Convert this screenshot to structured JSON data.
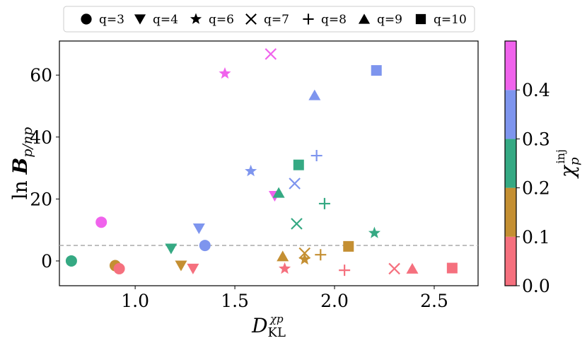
{
  "chart_data": {
    "type": "scatter",
    "xlabel": "D_KL^χp",
    "ylabel": "ln B_p/np",
    "xlim": [
      0.62,
      2.72
    ],
    "ylim": [
      -8,
      71
    ],
    "xticks": [
      1.0,
      1.5,
      2.0,
      2.5
    ],
    "xtick_labels": [
      "1.0",
      "1.5",
      "2.0",
      "2.5"
    ],
    "yticks": [
      0,
      20,
      40,
      60
    ],
    "ytick_labels": [
      "0",
      "20",
      "40",
      "60"
    ],
    "reference_line": {
      "y": 5,
      "style": "dashed",
      "color": "#b0b0b0"
    },
    "legend": {
      "placement": "top-center",
      "entries": [
        {
          "q": 3,
          "label": "q=3",
          "marker": "circle"
        },
        {
          "q": 4,
          "label": "q=4",
          "marker": "triangle-down"
        },
        {
          "q": 6,
          "label": "q=6",
          "marker": "star"
        },
        {
          "q": 7,
          "label": "q=7",
          "marker": "x"
        },
        {
          "q": 8,
          "label": "q=8",
          "marker": "plus"
        },
        {
          "q": 9,
          "label": "q=9",
          "marker": "triangle-up"
        },
        {
          "q": 10,
          "label": "q=10",
          "marker": "square"
        }
      ]
    },
    "colorbar": {
      "label": "χp^inj",
      "range": [
        0.0,
        0.5
      ],
      "ticks": [
        0.0,
        0.1,
        0.2,
        0.3,
        0.4
      ],
      "tick_labels": [
        "0.0",
        "0.1",
        "0.2",
        "0.3",
        "0.4"
      ],
      "bins": [
        {
          "from": 0.0,
          "to": 0.1,
          "color": "#f5707e"
        },
        {
          "from": 0.1,
          "to": 0.2,
          "color": "#c48f32"
        },
        {
          "from": 0.2,
          "to": 0.3,
          "color": "#35a983"
        },
        {
          "from": 0.3,
          "to": 0.4,
          "color": "#7e95ee"
        },
        {
          "from": 0.4,
          "to": 0.5,
          "color": "#f063ec"
        }
      ]
    },
    "points": [
      {
        "q": 3,
        "chi": 0.25,
        "x": 0.68,
        "y": 0.0
      },
      {
        "q": 3,
        "chi": 0.45,
        "x": 0.83,
        "y": 12.5
      },
      {
        "q": 3,
        "chi": 0.15,
        "x": 0.9,
        "y": -1.5
      },
      {
        "q": 3,
        "chi": 0.05,
        "x": 0.92,
        "y": -2.5
      },
      {
        "q": 3,
        "chi": 0.35,
        "x": 1.35,
        "y": 5.0
      },
      {
        "q": 4,
        "chi": 0.25,
        "x": 1.18,
        "y": 4.0
      },
      {
        "q": 4,
        "chi": 0.15,
        "x": 1.23,
        "y": -1.5
      },
      {
        "q": 4,
        "chi": 0.05,
        "x": 1.29,
        "y": -2.5
      },
      {
        "q": 4,
        "chi": 0.35,
        "x": 1.32,
        "y": 10.5
      },
      {
        "q": 4,
        "chi": 0.45,
        "x": 1.7,
        "y": 21.0
      },
      {
        "q": 6,
        "chi": 0.45,
        "x": 1.45,
        "y": 60.5
      },
      {
        "q": 6,
        "chi": 0.35,
        "x": 1.58,
        "y": 29.0
      },
      {
        "q": 6,
        "chi": 0.05,
        "x": 1.75,
        "y": -2.5
      },
      {
        "q": 6,
        "chi": 0.15,
        "x": 1.85,
        "y": 0.5
      },
      {
        "q": 6,
        "chi": 0.25,
        "x": 2.2,
        "y": 9.0
      },
      {
        "q": 7,
        "chi": 0.45,
        "x": 1.68,
        "y": 66.8
      },
      {
        "q": 7,
        "chi": 0.35,
        "x": 1.8,
        "y": 25.0
      },
      {
        "q": 7,
        "chi": 0.25,
        "x": 1.81,
        "y": 12.0
      },
      {
        "q": 7,
        "chi": 0.15,
        "x": 1.85,
        "y": 2.5
      },
      {
        "q": 7,
        "chi": 0.05,
        "x": 2.3,
        "y": -2.5
      },
      {
        "q": 8,
        "chi": 0.35,
        "x": 1.91,
        "y": 34.0
      },
      {
        "q": 8,
        "chi": 0.25,
        "x": 1.95,
        "y": 18.5
      },
      {
        "q": 8,
        "chi": 0.15,
        "x": 1.93,
        "y": 2.0
      },
      {
        "q": 8,
        "chi": 0.05,
        "x": 2.05,
        "y": -3.0
      },
      {
        "q": 9,
        "chi": 0.35,
        "x": 1.9,
        "y": 53.5
      },
      {
        "q": 9,
        "chi": 0.25,
        "x": 1.72,
        "y": 22.0
      },
      {
        "q": 9,
        "chi": 0.15,
        "x": 1.74,
        "y": 1.5
      },
      {
        "q": 9,
        "chi": 0.05,
        "x": 2.39,
        "y": -2.5
      },
      {
        "q": 10,
        "chi": 0.35,
        "x": 2.21,
        "y": 61.5
      },
      {
        "q": 10,
        "chi": 0.25,
        "x": 1.82,
        "y": 31.0
      },
      {
        "q": 10,
        "chi": 0.15,
        "x": 2.07,
        "y": 4.7
      },
      {
        "q": 10,
        "chi": 0.05,
        "x": 2.59,
        "y": -2.3
      }
    ]
  }
}
